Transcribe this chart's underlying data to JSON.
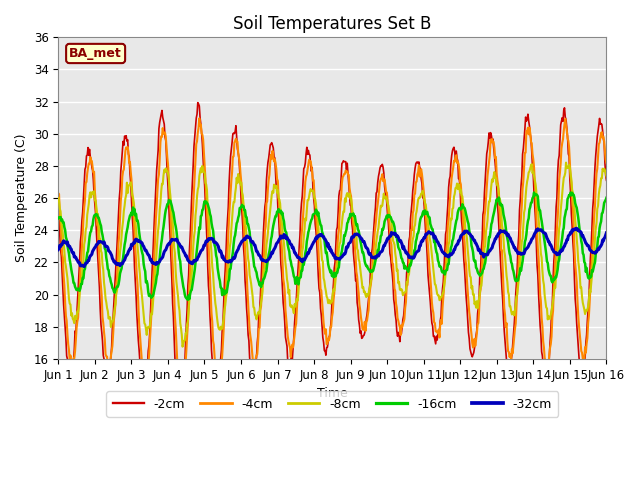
{
  "title": "Soil Temperatures Set B",
  "xlabel": "Time",
  "ylabel": "Soil Temperature (C)",
  "ylim": [
    16,
    36
  ],
  "yticks": [
    16,
    18,
    20,
    22,
    24,
    26,
    28,
    30,
    32,
    34,
    36
  ],
  "plot_bg_color": "#e8e8e8",
  "label_box": "BA_met",
  "label_box_bg": "#ffffcc",
  "label_box_border": "#8B0000",
  "label_box_text": "#8B0000",
  "legend_entries": [
    "-2cm",
    "-4cm",
    "-8cm",
    "-16cm",
    "-32cm"
  ],
  "line_colors": [
    "#cc0000",
    "#ff8800",
    "#cccc00",
    "#00cc00",
    "#0000bb"
  ],
  "line_widths": [
    1.2,
    1.5,
    1.5,
    1.8,
    2.2
  ],
  "title_fontsize": 12,
  "axis_label_fontsize": 9,
  "tick_fontsize": 8.5
}
